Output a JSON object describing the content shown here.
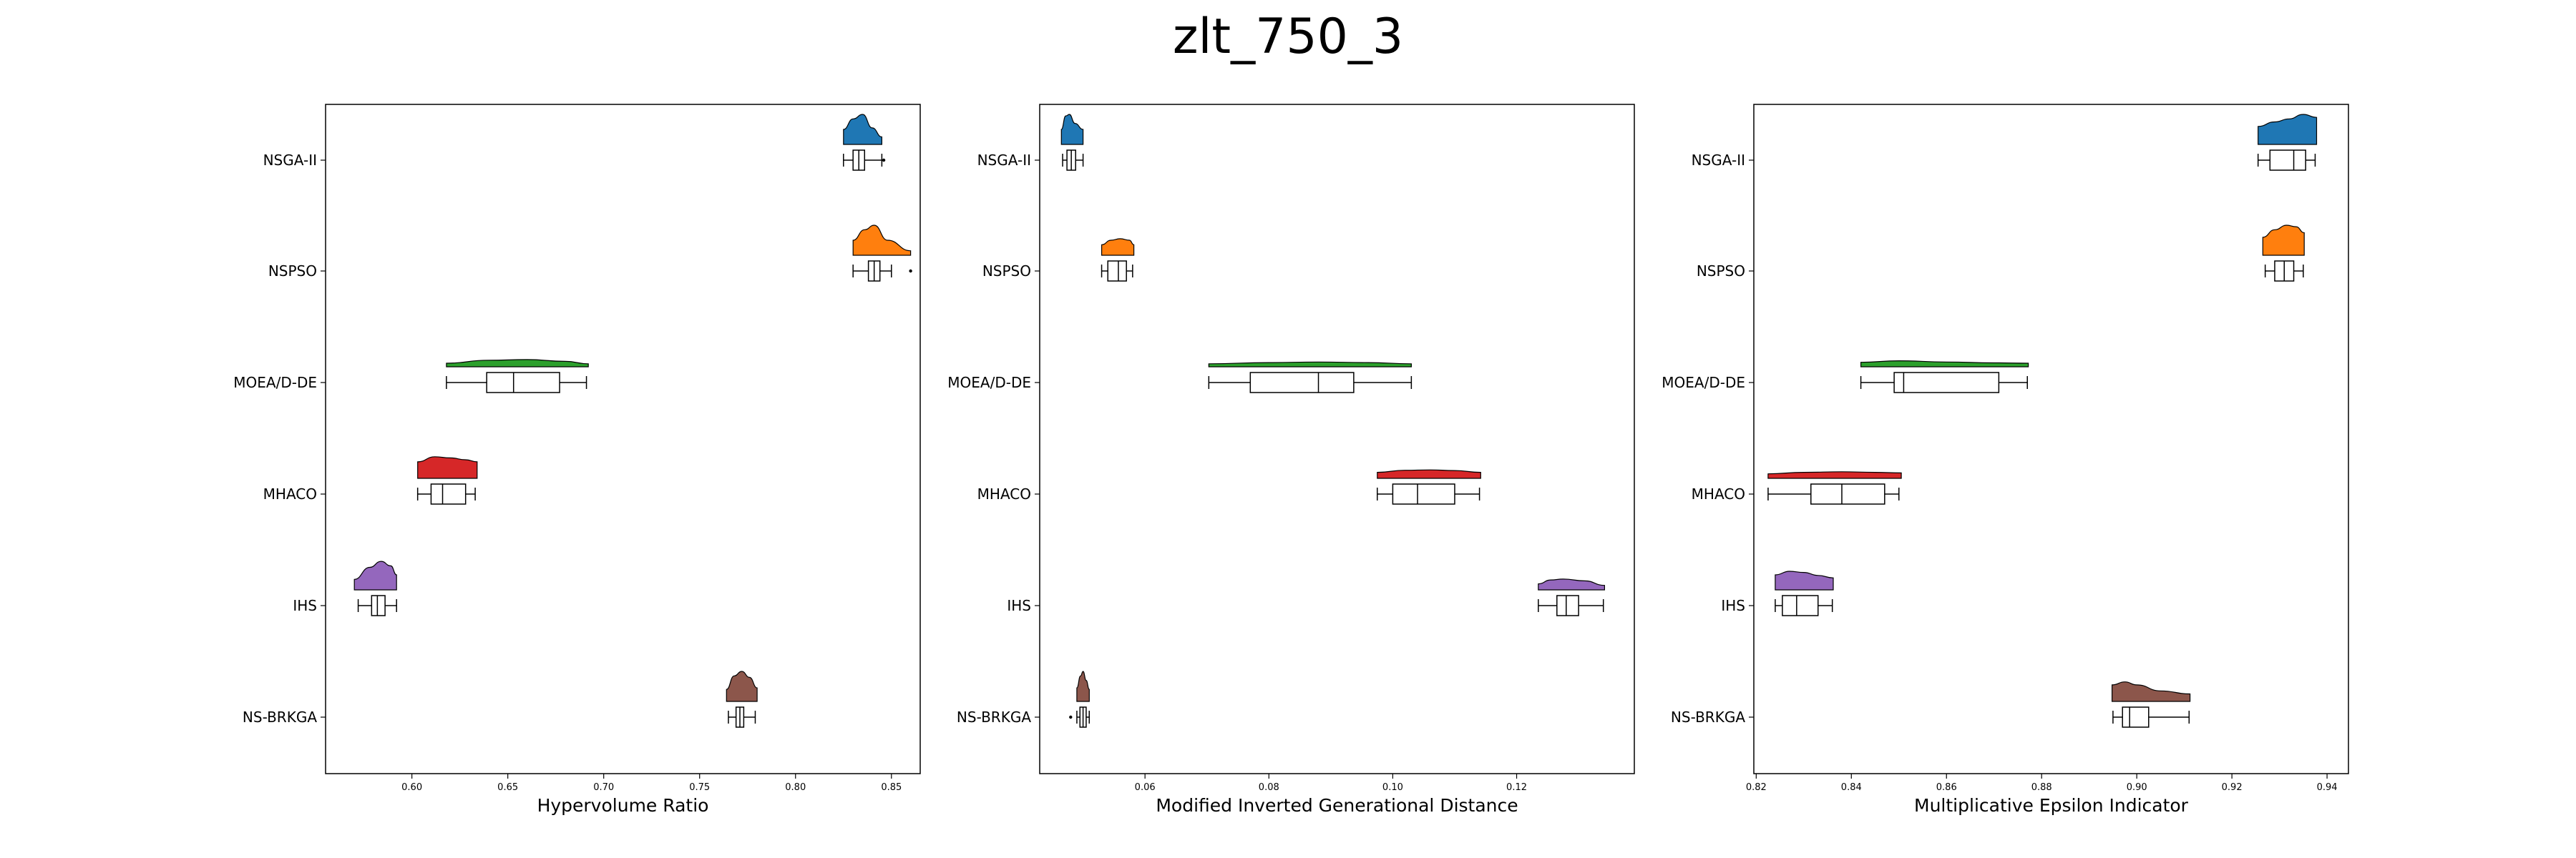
{
  "title": "zlt_750_3",
  "chart_data": [
    {
      "type": "raincloud",
      "xlabel": "Hypervolume Ratio",
      "xlim": [
        0.555,
        0.865
      ],
      "xticks": [
        "0.60",
        "0.65",
        "0.70",
        "0.75",
        "0.80",
        "0.85"
      ],
      "categories": [
        "NSGA-II",
        "NSPSO",
        "MOEA/D-DE",
        "MHACO",
        "IHS",
        "NS-BRKGA"
      ],
      "series": [
        {
          "color": "#1f77b4",
          "min": 0.825,
          "q1": 0.83,
          "median": 0.833,
          "q3": 0.836,
          "max": 0.845,
          "outliers": [
            0.846
          ],
          "density": [
            [
              0.825,
              0.5
            ],
            [
              0.83,
              0.85
            ],
            [
              0.835,
              1.0
            ],
            [
              0.84,
              0.55
            ],
            [
              0.845,
              0.25
            ]
          ]
        },
        {
          "color": "#ff7f0e",
          "min": 0.83,
          "q1": 0.838,
          "median": 0.841,
          "q3": 0.844,
          "max": 0.85,
          "outliers": [
            0.86
          ],
          "density": [
            [
              0.83,
              0.5
            ],
            [
              0.836,
              0.85
            ],
            [
              0.841,
              1.0
            ],
            [
              0.848,
              0.5
            ],
            [
              0.86,
              0.15
            ]
          ]
        },
        {
          "color": "#2ca02c",
          "min": 0.618,
          "q1": 0.639,
          "median": 0.653,
          "q3": 0.677,
          "max": 0.691,
          "outliers": [],
          "density": [
            [
              0.618,
              0.12
            ],
            [
              0.64,
              0.22
            ],
            [
              0.66,
              0.24
            ],
            [
              0.68,
              0.18
            ],
            [
              0.692,
              0.1
            ]
          ]
        },
        {
          "color": "#d62728",
          "min": 0.603,
          "q1": 0.61,
          "median": 0.616,
          "q3": 0.628,
          "max": 0.633,
          "outliers": [],
          "density": [
            [
              0.603,
              0.55
            ],
            [
              0.612,
              0.72
            ],
            [
              0.62,
              0.68
            ],
            [
              0.628,
              0.62
            ],
            [
              0.634,
              0.55
            ]
          ]
        },
        {
          "color": "#9467bd",
          "min": 0.572,
          "q1": 0.579,
          "median": 0.582,
          "q3": 0.586,
          "max": 0.592,
          "outliers": [],
          "density": [
            [
              0.57,
              0.35
            ],
            [
              0.578,
              0.75
            ],
            [
              0.584,
              0.95
            ],
            [
              0.589,
              0.8
            ],
            [
              0.592,
              0.5
            ]
          ]
        },
        {
          "color": "#8c564b",
          "min": 0.765,
          "q1": 0.769,
          "median": 0.771,
          "q3": 0.773,
          "max": 0.779,
          "outliers": [],
          "density": [
            [
              0.764,
              0.4
            ],
            [
              0.768,
              0.85
            ],
            [
              0.772,
              1.0
            ],
            [
              0.776,
              0.8
            ],
            [
              0.78,
              0.45
            ]
          ]
        }
      ]
    },
    {
      "type": "raincloud",
      "xlabel": "Modified Inverted Generational Distance",
      "xlim": [
        0.043,
        0.139
      ],
      "xticks": [
        "0.06",
        "0.08",
        "0.10",
        "0.12"
      ],
      "categories": [
        "NSGA-II",
        "NSPSO",
        "MOEA/D-DE",
        "MHACO",
        "IHS",
        "NS-BRKGA"
      ],
      "series": [
        {
          "color": "#1f77b4",
          "min": 0.0467,
          "q1": 0.0474,
          "median": 0.0481,
          "q3": 0.0488,
          "max": 0.05,
          "outliers": [],
          "density": [
            [
              0.0465,
              0.5
            ],
            [
              0.0472,
              0.95
            ],
            [
              0.0478,
              1.0
            ],
            [
              0.0487,
              0.7
            ],
            [
              0.05,
              0.5
            ]
          ]
        },
        {
          "color": "#ff7f0e",
          "min": 0.053,
          "q1": 0.054,
          "median": 0.0557,
          "q3": 0.057,
          "max": 0.058,
          "outliers": [],
          "density": [
            [
              0.053,
              0.35
            ],
            [
              0.0545,
              0.5
            ],
            [
              0.056,
              0.55
            ],
            [
              0.0575,
              0.5
            ],
            [
              0.0582,
              0.35
            ]
          ]
        },
        {
          "color": "#2ca02c",
          "min": 0.0703,
          "q1": 0.077,
          "median": 0.088,
          "q3": 0.0937,
          "max": 0.103,
          "outliers": [],
          "density": [
            [
              0.0703,
              0.1
            ],
            [
              0.08,
              0.14
            ],
            [
              0.088,
              0.16
            ],
            [
              0.096,
              0.14
            ],
            [
              0.103,
              0.1
            ]
          ]
        },
        {
          "color": "#d62728",
          "min": 0.0975,
          "q1": 0.1,
          "median": 0.104,
          "q3": 0.11,
          "max": 0.114,
          "outliers": [],
          "density": [
            [
              0.0975,
              0.2
            ],
            [
              0.102,
              0.27
            ],
            [
              0.106,
              0.28
            ],
            [
              0.11,
              0.26
            ],
            [
              0.1142,
              0.2
            ]
          ]
        },
        {
          "color": "#9467bd",
          "min": 0.1235,
          "q1": 0.1265,
          "median": 0.128,
          "q3": 0.13,
          "max": 0.134,
          "outliers": [],
          "density": [
            [
              0.1235,
              0.2
            ],
            [
              0.1255,
              0.33
            ],
            [
              0.1275,
              0.36
            ],
            [
              0.131,
              0.3
            ],
            [
              0.1342,
              0.15
            ]
          ]
        },
        {
          "color": "#8c564b",
          "min": 0.049,
          "q1": 0.0495,
          "median": 0.05,
          "q3": 0.0505,
          "max": 0.051,
          "outliers": [
            0.048
          ],
          "density": [
            [
              0.049,
              0.45
            ],
            [
              0.0496,
              0.85
            ],
            [
              0.05,
              1.0
            ],
            [
              0.0505,
              0.7
            ],
            [
              0.051,
              0.4
            ]
          ]
        }
      ]
    },
    {
      "type": "raincloud",
      "xlabel": "Multiplicative Epsilon Indicator",
      "xlim": [
        0.8195,
        0.9445
      ],
      "xticks": [
        "0.82",
        "0.84",
        "0.86",
        "0.88",
        "0.90",
        "0.92",
        "0.94"
      ],
      "categories": [
        "NSGA-II",
        "NSPSO",
        "MOEA/D-DE",
        "MHACO",
        "IHS",
        "NS-BRKGA"
      ],
      "series": [
        {
          "color": "#1f77b4",
          "min": 0.9255,
          "q1": 0.928,
          "median": 0.933,
          "q3": 0.9355,
          "max": 0.9375,
          "outliers": [],
          "density": [
            [
              0.9255,
              0.6
            ],
            [
              0.929,
              0.75
            ],
            [
              0.932,
              0.85
            ],
            [
              0.935,
              1.0
            ],
            [
              0.9378,
              0.9
            ]
          ]
        },
        {
          "color": "#ff7f0e",
          "min": 0.927,
          "q1": 0.929,
          "median": 0.931,
          "q3": 0.933,
          "max": 0.935,
          "outliers": [],
          "density": [
            [
              0.9265,
              0.6
            ],
            [
              0.929,
              0.85
            ],
            [
              0.9315,
              1.0
            ],
            [
              0.9335,
              0.95
            ],
            [
              0.9352,
              0.75
            ]
          ]
        },
        {
          "color": "#2ca02c",
          "min": 0.842,
          "q1": 0.849,
          "median": 0.851,
          "q3": 0.871,
          "max": 0.877,
          "outliers": [],
          "density": [
            [
              0.842,
              0.15
            ],
            [
              0.85,
              0.2
            ],
            [
              0.86,
              0.16
            ],
            [
              0.87,
              0.13
            ],
            [
              0.8772,
              0.12
            ]
          ]
        },
        {
          "color": "#d62728",
          "min": 0.8225,
          "q1": 0.8315,
          "median": 0.838,
          "q3": 0.847,
          "max": 0.85,
          "outliers": [],
          "density": [
            [
              0.8225,
              0.15
            ],
            [
              0.83,
              0.2
            ],
            [
              0.838,
              0.22
            ],
            [
              0.845,
              0.2
            ],
            [
              0.8505,
              0.18
            ]
          ]
        },
        {
          "color": "#9467bd",
          "min": 0.824,
          "q1": 0.8255,
          "median": 0.8285,
          "q3": 0.833,
          "max": 0.836,
          "outliers": [],
          "density": [
            [
              0.824,
              0.5
            ],
            [
              0.827,
              0.62
            ],
            [
              0.83,
              0.58
            ],
            [
              0.833,
              0.48
            ],
            [
              0.8362,
              0.4
            ]
          ]
        },
        {
          "color": "#8c564b",
          "min": 0.895,
          "q1": 0.897,
          "median": 0.8985,
          "q3": 0.9025,
          "max": 0.911,
          "outliers": [],
          "density": [
            [
              0.8948,
              0.55
            ],
            [
              0.8975,
              0.65
            ],
            [
              0.9,
              0.55
            ],
            [
              0.905,
              0.35
            ],
            [
              0.9112,
              0.25
            ]
          ]
        }
      ]
    }
  ]
}
